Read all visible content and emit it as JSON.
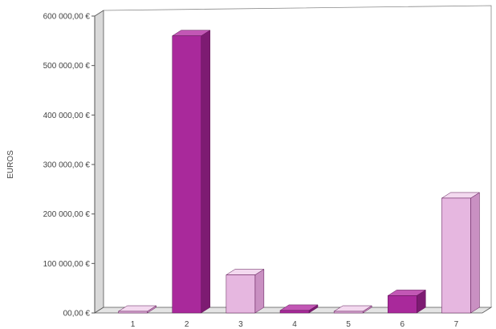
{
  "chart_data": {
    "type": "bar",
    "title": "",
    "xlabel": "",
    "ylabel": "EUROS",
    "categories": [
      "1",
      "2",
      "3",
      "4",
      "5",
      "6",
      "7"
    ],
    "values": [
      2000,
      560000,
      77000,
      5000,
      1000,
      35000,
      232000
    ],
    "ylim": [
      0,
      600000
    ],
    "yticks": [
      0,
      100000,
      200000,
      300000,
      400000,
      500000,
      600000
    ],
    "ytick_labels": [
      "00,00 €",
      "100 000,00 €",
      "200 000,00 €",
      "300 000,00 €",
      "400 000,00 €",
      "500 000,00 €",
      "600 000,00 €"
    ],
    "grid": false,
    "legend": "none",
    "style": "3d",
    "colors": {
      "dark_front": "#a9299b",
      "dark_top": "#c257b5",
      "dark_side": "#7d1b72",
      "light_front": "#e6b7e0",
      "light_top": "#f3d9ef",
      "light_side": "#c990c2"
    },
    "bar_shades": [
      "light",
      "dark",
      "light",
      "dark",
      "light",
      "dark",
      "light"
    ]
  }
}
